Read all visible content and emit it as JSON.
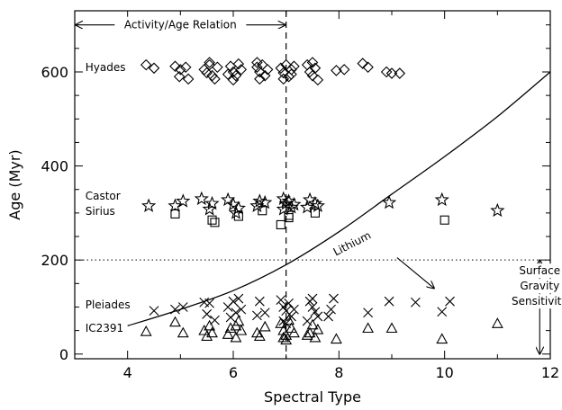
{
  "chart_data": {
    "type": "scatter",
    "xlabel": "Spectral Type",
    "ylabel": "Age (Myr)",
    "xlim": [
      3,
      12
    ],
    "ylim": [
      -10,
      730
    ],
    "xticks": [
      4,
      6,
      8,
      10,
      12
    ],
    "yticks": [
      0,
      200,
      400,
      600
    ],
    "grid": false,
    "series": [
      {
        "name": "Hyades",
        "marker": "diamond",
        "points": [
          [
            4.35,
            615
          ],
          [
            4.5,
            608
          ],
          [
            4.9,
            612
          ],
          [
            5.0,
            605
          ],
          [
            5.1,
            610
          ],
          [
            4.98,
            590
          ],
          [
            5.15,
            585
          ],
          [
            5.45,
            605
          ],
          [
            5.5,
            598
          ],
          [
            5.55,
            615
          ],
          [
            5.6,
            592
          ],
          [
            5.65,
            585
          ],
          [
            5.7,
            610
          ],
          [
            5.55,
            620
          ],
          [
            5.95,
            612
          ],
          [
            6.0,
            600
          ],
          [
            6.05,
            592
          ],
          [
            6.1,
            617
          ],
          [
            6.15,
            605
          ],
          [
            6.0,
            583
          ],
          [
            5.9,
            595
          ],
          [
            6.45,
            610
          ],
          [
            6.5,
            600
          ],
          [
            6.55,
            615
          ],
          [
            6.6,
            592
          ],
          [
            6.65,
            605
          ],
          [
            6.5,
            585
          ],
          [
            6.45,
            620
          ],
          [
            6.9,
            608
          ],
          [
            6.95,
            598
          ],
          [
            7.0,
            615
          ],
          [
            7.05,
            590
          ],
          [
            7.1,
            605
          ],
          [
            7.15,
            612
          ],
          [
            6.95,
            585
          ],
          [
            7.1,
            595
          ],
          [
            7.4,
            615
          ],
          [
            7.45,
            600
          ],
          [
            7.5,
            592
          ],
          [
            7.55,
            608
          ],
          [
            7.6,
            583
          ],
          [
            7.5,
            620
          ],
          [
            7.95,
            603
          ],
          [
            8.1,
            605
          ],
          [
            8.45,
            618
          ],
          [
            8.55,
            610
          ],
          [
            8.9,
            600
          ],
          [
            9.0,
            597
          ],
          [
            9.15,
            597
          ]
        ]
      },
      {
        "name": "Castor Sirius",
        "marker": "star",
        "points": [
          [
            4.4,
            315
          ],
          [
            4.9,
            315
          ],
          [
            5.05,
            325
          ],
          [
            5.4,
            330
          ],
          [
            5.6,
            320
          ],
          [
            5.55,
            308
          ],
          [
            5.9,
            328
          ],
          [
            6.0,
            318
          ],
          [
            6.1,
            310
          ],
          [
            6.05,
            300
          ],
          [
            6.5,
            325
          ],
          [
            6.6,
            322
          ],
          [
            6.45,
            315
          ],
          [
            6.95,
            330
          ],
          [
            7.0,
            320
          ],
          [
            7.05,
            325
          ],
          [
            7.1,
            312
          ],
          [
            6.95,
            308
          ],
          [
            7.15,
            318
          ],
          [
            7.45,
            328
          ],
          [
            7.55,
            320
          ],
          [
            7.6,
            315
          ],
          [
            7.4,
            312
          ],
          [
            8.95,
            322
          ],
          [
            9.95,
            328
          ],
          [
            11.0,
            305
          ]
        ]
      },
      {
        "name": "Castor Sirius",
        "marker": "square",
        "points": [
          [
            4.9,
            298
          ],
          [
            5.6,
            285
          ],
          [
            5.65,
            280
          ],
          [
            6.1,
            293
          ],
          [
            6.55,
            305
          ],
          [
            6.9,
            275
          ],
          [
            7.05,
            295
          ],
          [
            7.05,
            290
          ],
          [
            7.55,
            300
          ],
          [
            10.0,
            285
          ]
        ]
      },
      {
        "name": "Pleiades",
        "marker": "x",
        "points": [
          [
            4.5,
            92
          ],
          [
            4.9,
            95
          ],
          [
            5.05,
            100
          ],
          [
            5.45,
            110
          ],
          [
            5.55,
            108
          ],
          [
            5.5,
            85
          ],
          [
            5.65,
            72
          ],
          [
            5.9,
            100
          ],
          [
            6.0,
            112
          ],
          [
            6.05,
            88
          ],
          [
            6.1,
            118
          ],
          [
            5.95,
            78
          ],
          [
            6.15,
            95
          ],
          [
            6.45,
            82
          ],
          [
            6.6,
            88
          ],
          [
            6.5,
            112
          ],
          [
            6.9,
            115
          ],
          [
            6.95,
            100
          ],
          [
            7.0,
            92
          ],
          [
            7.05,
            108
          ],
          [
            7.1,
            80
          ],
          [
            6.95,
            70
          ],
          [
            7.15,
            95
          ],
          [
            7.0,
            65
          ],
          [
            7.45,
            112
          ],
          [
            7.5,
            100
          ],
          [
            7.55,
            90
          ],
          [
            7.6,
            80
          ],
          [
            7.4,
            70
          ],
          [
            7.5,
            118
          ],
          [
            7.9,
            118
          ],
          [
            7.85,
            95
          ],
          [
            7.8,
            80
          ],
          [
            8.55,
            88
          ],
          [
            8.95,
            112
          ],
          [
            9.45,
            110
          ],
          [
            9.95,
            90
          ],
          [
            10.1,
            112
          ]
        ]
      },
      {
        "name": "IC2391",
        "marker": "triangle",
        "points": [
          [
            4.35,
            48
          ],
          [
            4.9,
            68
          ],
          [
            5.05,
            45
          ],
          [
            5.45,
            50
          ],
          [
            5.5,
            38
          ],
          [
            5.6,
            45
          ],
          [
            5.55,
            60
          ],
          [
            5.9,
            42
          ],
          [
            5.95,
            55
          ],
          [
            6.05,
            35
          ],
          [
            6.1,
            70
          ],
          [
            6.15,
            50
          ],
          [
            6.05,
            60
          ],
          [
            6.45,
            45
          ],
          [
            6.6,
            58
          ],
          [
            6.5,
            38
          ],
          [
            6.9,
            65
          ],
          [
            6.95,
            50
          ],
          [
            7.0,
            40
          ],
          [
            7.05,
            72
          ],
          [
            7.1,
            55
          ],
          [
            6.95,
            35
          ],
          [
            7.15,
            45
          ],
          [
            7.0,
            30
          ],
          [
            7.45,
            45
          ],
          [
            7.5,
            62
          ],
          [
            7.55,
            35
          ],
          [
            7.6,
            52
          ],
          [
            7.4,
            40
          ],
          [
            7.95,
            32
          ],
          [
            8.55,
            55
          ],
          [
            9.0,
            55
          ],
          [
            9.95,
            32
          ],
          [
            11.0,
            65
          ]
        ]
      }
    ],
    "lithium_curve": {
      "label": "Lithium",
      "points": [
        [
          4.0,
          60
        ],
        [
          5.0,
          95
        ],
        [
          6.0,
          135
        ],
        [
          7.0,
          190
        ],
        [
          8.0,
          260
        ],
        [
          9.0,
          340
        ],
        [
          10.0,
          420
        ],
        [
          11.0,
          505
        ],
        [
          12.0,
          600
        ]
      ]
    },
    "reference_lines": {
      "vertical_x": 7.0,
      "horizontal_y": 200
    },
    "annotations": [
      {
        "key": "activity",
        "text": "Activity/Age Relation",
        "x_from": 3.0,
        "x_to": 7.0,
        "y": 700
      },
      {
        "key": "gravity",
        "lines": [
          "Surface",
          "Gravity",
          "Sensitivity"
        ],
        "x": 11.8,
        "y_from": 0,
        "y_to": 200
      },
      {
        "key": "lithium_arrow",
        "from": [
          9.1,
          205
        ],
        "to": [
          9.8,
          140
        ]
      }
    ],
    "group_labels": [
      {
        "key": "hyades",
        "lines": [
          "Hyades"
        ],
        "x": 3.2,
        "y": 610
      },
      {
        "key": "castor-sirius",
        "lines": [
          "Castor",
          "Sirius"
        ],
        "x": 3.2,
        "y": 320
      },
      {
        "key": "pleiades",
        "lines": [
          "Pleiades"
        ],
        "x": 3.2,
        "y": 105
      },
      {
        "key": "ic2391",
        "lines": [
          "IC2391"
        ],
        "x": 3.2,
        "y": 55
      }
    ]
  }
}
